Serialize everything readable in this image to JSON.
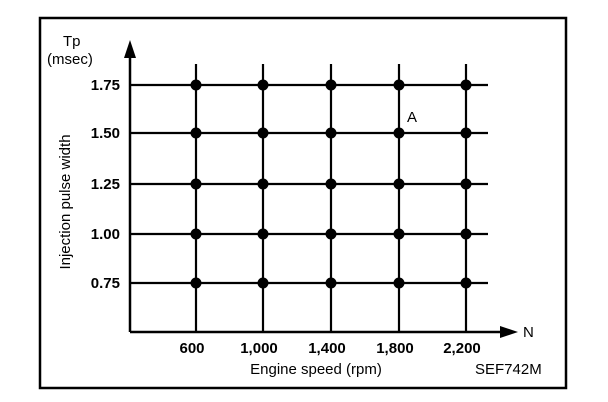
{
  "chart_data": {
    "type": "scatter",
    "title": "",
    "y_symbol": "Tp",
    "y_unit": "(msec)",
    "ylabel": "Injection pulse width",
    "x_symbol": "N",
    "xlabel": "Engine speed (rpm)",
    "x_categories": [
      "600",
      "1,000",
      "1,400",
      "1,800",
      "2,200"
    ],
    "y_categories": [
      "1.75",
      "1.50",
      "1.25",
      "1.00",
      "0.75"
    ],
    "x_values": [
      600,
      1000,
      1400,
      1800,
      2200
    ],
    "y_values": [
      1.75,
      1.5,
      1.25,
      1.0,
      0.75
    ],
    "grid": true,
    "points_description": "grid points at every combination of x_values and y_values",
    "annotations": [
      {
        "text": "A",
        "x": 1800,
        "y": 1.5
      }
    ],
    "figure_code": "SEF742M"
  },
  "colors": {
    "ink": "#000000",
    "background": "#ffffff"
  }
}
